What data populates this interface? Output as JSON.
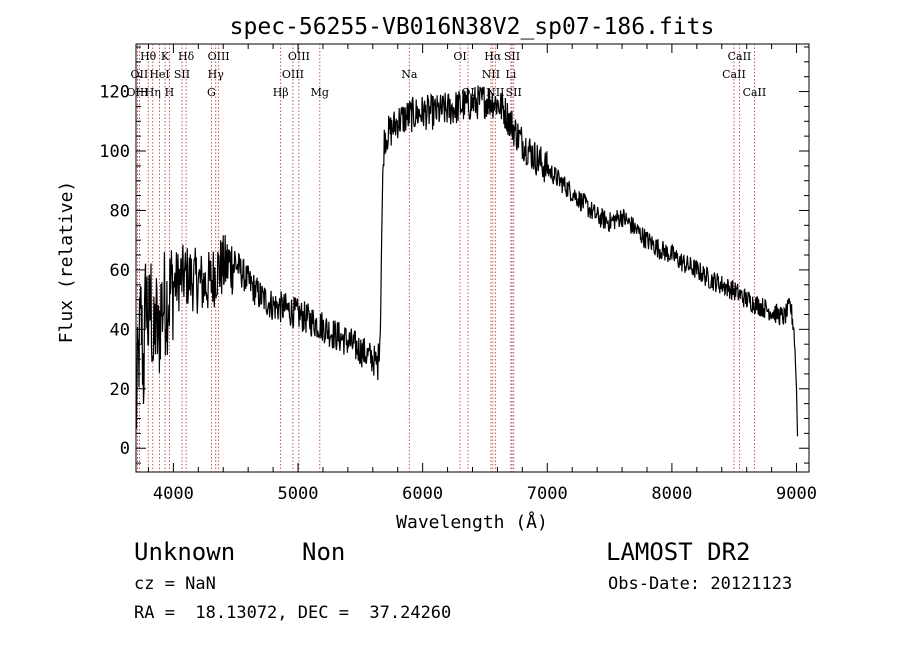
{
  "chart_data": {
    "type": "line",
    "title": "spec-56255-VB016N38V2_sp07-186.fits",
    "xlabel": "Wavelength (Å)",
    "ylabel": "Flux (relative)",
    "xlim": [
      3700,
      9100
    ],
    "ylim": [
      -8,
      136
    ],
    "x_ticks": [
      4000,
      5000,
      6000,
      7000,
      8000,
      9000
    ],
    "x_tick_labels": [
      "4000",
      "5000",
      "6000",
      "7000",
      "8000",
      "9000"
    ],
    "y_ticks": [
      0,
      20,
      40,
      60,
      80,
      100,
      120
    ],
    "y_tick_labels": [
      "0",
      "20",
      "40",
      "60",
      "80",
      "100",
      "120"
    ],
    "grid": false,
    "line_color": "#000000",
    "marker_color": "#b03030",
    "spectrum": {
      "x": [
        3700,
        3720,
        3740,
        3760,
        3780,
        3800,
        3820,
        3840,
        3860,
        3880,
        3900,
        3950,
        4000,
        4050,
        4100,
        4150,
        4200,
        4250,
        4300,
        4350,
        4400,
        4450,
        4500,
        4600,
        4700,
        4800,
        4900,
        5000,
        5100,
        5200,
        5300,
        5400,
        5500,
        5600,
        5640,
        5660,
        5670,
        5680,
        5690,
        5700,
        5750,
        5800,
        5850,
        5900,
        6000,
        6100,
        6200,
        6300,
        6400,
        6500,
        6550,
        6600,
        6650,
        6700,
        6750,
        6800,
        6900,
        7000,
        7100,
        7200,
        7300,
        7400,
        7500,
        7600,
        7700,
        7800,
        7900,
        8000,
        8100,
        8200,
        8300,
        8400,
        8500,
        8600,
        8700,
        8800,
        8900,
        8950,
        8980,
        9000,
        9010
      ],
      "y": [
        10,
        30,
        45,
        25,
        55,
        40,
        50,
        30,
        45,
        35,
        48,
        50,
        55,
        57,
        58,
        57,
        56,
        55,
        56,
        60,
        61,
        62,
        62,
        56,
        51,
        48,
        47,
        45,
        43,
        41,
        38,
        36,
        33,
        30,
        28,
        40,
        70,
        90,
        103,
        105,
        107,
        110,
        111,
        112,
        113,
        113,
        114,
        115,
        116,
        117,
        117,
        116,
        114,
        110,
        106,
        103,
        98,
        94,
        90,
        86,
        82,
        78,
        76,
        78,
        74,
        70,
        67,
        65,
        62,
        60,
        57,
        55,
        53,
        50,
        48,
        46,
        44,
        48,
        40,
        20,
        0
      ]
    },
    "lines": [
      {
        "name": "Hθ",
        "x": 3798,
        "row": 1
      },
      {
        "name": "OII",
        "x": 3727,
        "row": 2
      },
      {
        "name": "OIII",
        "x": 3712,
        "row": 3
      },
      {
        "name": "K",
        "x": 3933,
        "row": 1
      },
      {
        "name": "H",
        "x": 3968,
        "row": 3
      },
      {
        "name": "Hη",
        "x": 3835,
        "row": 3
      },
      {
        "name": "HeI",
        "x": 3889,
        "row": 2
      },
      {
        "name": "SII",
        "x": 4069,
        "row": 2
      },
      {
        "name": "Hδ",
        "x": 4102,
        "row": 1
      },
      {
        "name": "OIII",
        "x": 4363,
        "row": 1
      },
      {
        "name": "Hγ",
        "x": 4340,
        "row": 2
      },
      {
        "name": "G",
        "x": 4305,
        "row": 3
      },
      {
        "name": "Hβ",
        "x": 4861,
        "row": 3
      },
      {
        "name": "OIII",
        "x": 4959,
        "row": 2
      },
      {
        "name": "OIII",
        "x": 5007,
        "row": 1
      },
      {
        "name": "Mg",
        "x": 5175,
        "row": 3
      },
      {
        "name": "Na",
        "x": 5893,
        "row": 2
      },
      {
        "name": "OI",
        "x": 6300,
        "row": 1
      },
      {
        "name": "OI",
        "x": 6364,
        "row": 3
      },
      {
        "name": "Hα",
        "x": 6563,
        "row": 1
      },
      {
        "name": "NII",
        "x": 6548,
        "row": 2
      },
      {
        "name": "NII",
        "x": 6583,
        "row": 3
      },
      {
        "name": "SII",
        "x": 6717,
        "row": 1
      },
      {
        "name": "Li",
        "x": 6708,
        "row": 2
      },
      {
        "name": "SII",
        "x": 6731,
        "row": 3
      },
      {
        "name": "CaII",
        "x": 8498,
        "row": 2
      },
      {
        "name": "CaII",
        "x": 8542,
        "row": 1
      },
      {
        "name": "CaII",
        "x": 8662,
        "row": 3
      }
    ]
  },
  "info": {
    "class": "Unknown",
    "subclass": "Non",
    "survey": "LAMOST DR2",
    "cz": "cz = NaN",
    "obs_date": "Obs-Date: 20121123",
    "coords": "RA =  18.13072, DEC =  37.24260"
  }
}
